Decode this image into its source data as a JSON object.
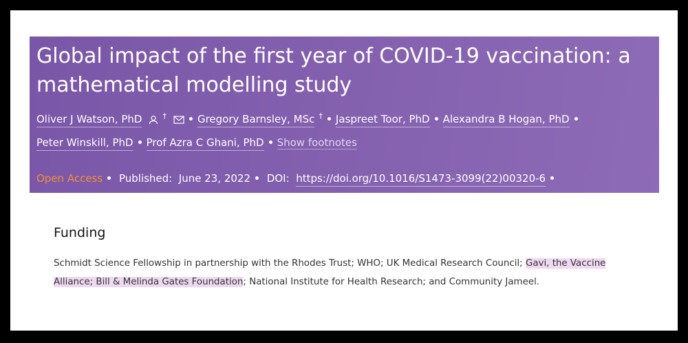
{
  "header": {
    "title": "Global impact of the first year of COVID-19 vaccination: a mathematical modelling study",
    "authors": [
      {
        "name": "Oliver J Watson, PhD",
        "mark": "†"
      },
      {
        "name": "Gregory Barnsley, MSc",
        "mark": "†"
      },
      {
        "name": "Jaspreet Toor, PhD"
      },
      {
        "name": "Alexandra B Hogan, PhD"
      },
      {
        "name": "Peter Winskill, PhD"
      },
      {
        "name": "Prof Azra C Ghani, PhD"
      }
    ],
    "show_footnotes": "Show footnotes",
    "open_access": "Open Access",
    "published_label": "Published:",
    "published_date": "June 23, 2022",
    "doi_label": "DOI:",
    "doi": "https://doi.org/10.1016/S1473-3099(22)00320-6"
  },
  "funding": {
    "heading": "Funding",
    "text_before": "Schmidt Science Fellowship in partnership with the Rhodes Trust; WHO; UK Medical Research Council; ",
    "text_highlighted": "Gavi, the Vaccine Alliance; Bill & Melinda Gates Foundation",
    "text_after": "; National Institute for Health Research; and Community Jameel."
  }
}
